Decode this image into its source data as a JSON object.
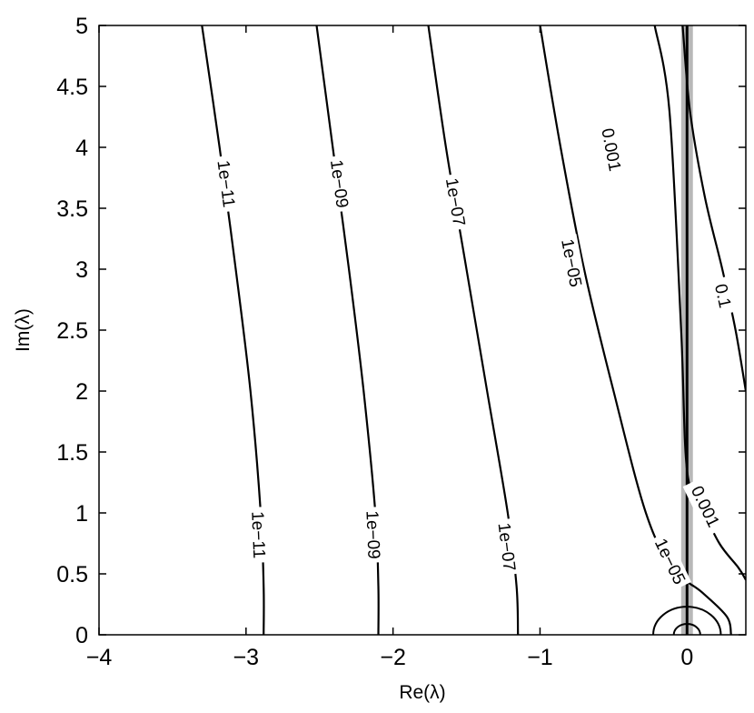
{
  "chart_data": {
    "type": "contour",
    "xlabel": "Re(λ)",
    "ylabel": "Im(λ)",
    "xlim": [
      -4,
      0.4
    ],
    "ylim": [
      0,
      5
    ],
    "xticks": [
      -4,
      -3,
      -2,
      -1,
      0
    ],
    "xtick_labels": [
      "−4",
      "−3",
      "−2",
      "−1",
      "0"
    ],
    "yticks": [
      0,
      0.5,
      1,
      1.5,
      2,
      2.5,
      3,
      3.5,
      4,
      4.5,
      5
    ],
    "ytick_labels": [
      "0",
      "0.5",
      "1",
      "1.5",
      "2",
      "2.5",
      "3",
      "3.5",
      "4",
      "4.5",
      "5"
    ],
    "grid": false,
    "contours": [
      {
        "level": "1e−11",
        "points": [
          [
            -3.3,
            5.0
          ],
          [
            -3.18,
            4.0
          ],
          [
            -3.07,
            3.0
          ],
          [
            -2.97,
            2.0
          ],
          [
            -2.9,
            1.0
          ],
          [
            -2.88,
            0.4
          ],
          [
            -2.88,
            0.0
          ]
        ]
      },
      {
        "level": "1e−09",
        "points": [
          [
            -2.52,
            5.0
          ],
          [
            -2.41,
            4.0
          ],
          [
            -2.3,
            3.0
          ],
          [
            -2.2,
            2.0
          ],
          [
            -2.12,
            1.0
          ],
          [
            -2.1,
            0.4
          ],
          [
            -2.1,
            0.0
          ]
        ]
      },
      {
        "level": "1e−07",
        "points": [
          [
            -1.76,
            5.0
          ],
          [
            -1.64,
            4.0
          ],
          [
            -1.5,
            3.0
          ],
          [
            -1.36,
            2.0
          ],
          [
            -1.22,
            1.0
          ],
          [
            -1.16,
            0.4
          ],
          [
            -1.15,
            0.0
          ]
        ]
      },
      {
        "level": "1e−05",
        "points": [
          [
            -1.0,
            5.0
          ],
          [
            -0.86,
            4.0
          ],
          [
            -0.7,
            3.0
          ],
          [
            -0.5,
            2.0
          ],
          [
            -0.28,
            1.0
          ],
          [
            -0.1,
            0.55
          ],
          [
            0.1,
            0.35
          ],
          [
            0.27,
            0.15
          ],
          [
            0.3,
            0.0
          ]
        ]
      },
      {
        "level": "0.001",
        "points": [
          [
            -0.22,
            5.0
          ],
          [
            -0.12,
            4.3
          ],
          [
            -0.04,
            2.5
          ],
          [
            0.0,
            1.35
          ],
          [
            0.1,
            1.05
          ],
          [
            0.22,
            0.75
          ],
          [
            0.35,
            0.55
          ],
          [
            0.4,
            0.45
          ]
        ]
      },
      {
        "level": "0.1",
        "points": [
          [
            -0.03,
            5.0
          ],
          [
            0.02,
            4.3
          ],
          [
            0.12,
            3.6
          ],
          [
            0.24,
            3.0
          ],
          [
            0.33,
            2.5
          ],
          [
            0.4,
            2.0
          ]
        ]
      }
    ],
    "small_loops": [
      {
        "center": [
          0.0,
          0.0
        ],
        "radius": 0.23
      },
      {
        "center": [
          0.0,
          0.0
        ],
        "radius": 0.09
      }
    ],
    "vertical_line": {
      "x": 0.0,
      "ylim": [
        0,
        5
      ],
      "shaded_band": [
        -0.04,
        0.04
      ]
    },
    "contour_labels": [
      {
        "text": "1e−11",
        "x": -3.14,
        "y": 3.7
      },
      {
        "text": "1e−11",
        "x": -2.92,
        "y": 0.82
      },
      {
        "text": "1e−09",
        "x": -2.37,
        "y": 3.7
      },
      {
        "text": "1e−09",
        "x": -2.14,
        "y": 0.82
      },
      {
        "text": "1e−07",
        "x": -1.58,
        "y": 3.55
      },
      {
        "text": "1e−07",
        "x": -1.23,
        "y": 0.72
      },
      {
        "text": "1e−05",
        "x": -0.79,
        "y": 3.05
      },
      {
        "text": "1e−05",
        "x": -0.12,
        "y": 0.6
      },
      {
        "text": "0.001",
        "x": -0.52,
        "y": 3.98
      },
      {
        "text": "0.001",
        "x": 0.12,
        "y": 1.05
      },
      {
        "text": "0.1",
        "x": 0.24,
        "y": 2.78
      }
    ]
  }
}
